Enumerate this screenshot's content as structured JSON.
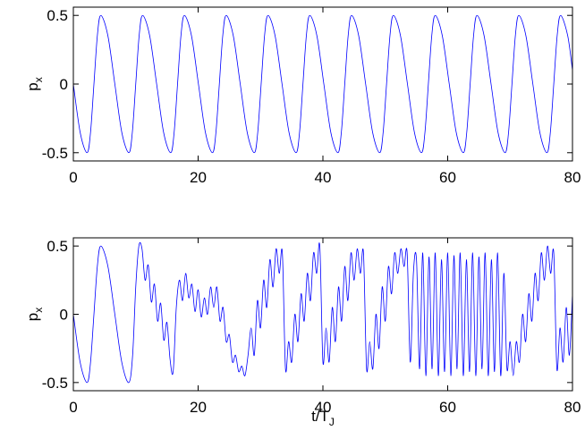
{
  "chart_data": [
    {
      "type": "line",
      "ylabel": [
        "p",
        "x"
      ],
      "x": [
        0,
        1.1,
        2.2,
        2.75,
        3.3,
        3.85,
        4.4,
        5.525,
        6.65,
        7.775,
        8.9,
        9.45,
        10,
        10.55,
        11.1,
        12.225,
        13.35,
        14.475,
        15.6,
        16.15,
        16.7,
        17.25,
        17.8,
        18.925,
        20.05,
        21.175,
        22.3,
        22.85,
        23.4,
        23.95,
        24.5,
        25.625,
        26.75,
        27.875,
        29,
        29.55,
        30.1,
        30.65,
        31.2,
        32.325,
        33.45,
        34.575,
        35.7,
        36.25,
        36.8,
        37.35,
        37.9,
        39.025,
        40.15,
        41.275,
        42.4,
        42.95,
        43.5,
        44.05,
        44.6,
        45.725,
        46.85,
        47.975,
        49.1,
        49.65,
        50.2,
        50.75,
        51.3,
        52.425,
        53.55,
        54.675,
        55.8,
        56.35,
        56.9,
        57.45,
        58,
        59.125,
        60.25,
        61.375,
        62.5,
        63.05,
        63.6,
        64.15,
        64.7,
        65.825,
        66.95,
        68.075,
        69.2,
        69.75,
        70.3,
        70.85,
        71.4,
        72.525,
        73.65,
        74.775,
        75.9,
        76.45,
        77,
        77.55,
        78.1,
        79.225,
        80
      ],
      "series": [
        {
          "color": "#0000ff",
          "values": [
            0,
            -0.354,
            -0.5,
            -0.354,
            0,
            0.354,
            0.5,
            0.354,
            0,
            -0.354,
            -0.5,
            -0.354,
            0,
            0.354,
            0.5,
            0.354,
            0,
            -0.354,
            -0.5,
            -0.354,
            0,
            0.354,
            0.5,
            0.354,
            0,
            -0.354,
            -0.5,
            -0.354,
            0,
            0.354,
            0.5,
            0.354,
            0,
            -0.354,
            -0.5,
            -0.354,
            0,
            0.354,
            0.5,
            0.354,
            0,
            -0.354,
            -0.5,
            -0.354,
            0,
            0.354,
            0.5,
            0.354,
            0,
            -0.354,
            -0.5,
            -0.354,
            0,
            0.354,
            0.5,
            0.354,
            0,
            -0.354,
            -0.5,
            -0.354,
            0,
            0.354,
            0.5,
            0.354,
            0,
            -0.354,
            -0.5,
            -0.354,
            0,
            0.354,
            0.5,
            0.354,
            0,
            -0.354,
            -0.5,
            -0.354,
            0,
            0.354,
            0.5,
            0.354,
            0,
            -0.354,
            -0.5,
            -0.354,
            0,
            0.354,
            0.5,
            0.354,
            0,
            -0.354,
            -0.5,
            -0.354,
            0,
            0.354,
            0.5,
            0.354,
            0.1
          ]
        }
      ],
      "xlim": [
        0,
        80
      ],
      "xticks": [
        0,
        20,
        40,
        60,
        80
      ],
      "ylim": [
        -0.56,
        0.56
      ],
      "yticks": [
        -0.5,
        0,
        0.5
      ]
    },
    {
      "type": "line",
      "ylabel": [
        "p",
        "x"
      ],
      "xlabel": [
        "t/T",
        "J"
      ],
      "x": [
        0,
        1.1,
        2.2,
        2.75,
        3.3,
        3.85,
        4.4,
        5.525,
        6.65,
        7.775,
        8.9,
        9.5,
        10,
        10.5,
        11,
        11.5,
        12,
        12.5,
        13,
        13.5,
        14,
        14.5,
        15,
        15.5,
        16,
        16.5,
        17,
        17.5,
        18,
        18.5,
        19,
        19.5,
        20,
        20.5,
        21,
        21.5,
        22,
        22.5,
        23,
        23.5,
        24,
        24.5,
        25,
        25.5,
        26,
        26.5,
        27,
        27.5,
        28,
        28.5,
        29,
        29.5,
        30,
        30.5,
        31,
        31.5,
        32,
        32.5,
        33,
        33.5,
        34,
        34.5,
        35,
        35.5,
        36,
        36.5,
        37,
        37.5,
        38,
        38.5,
        39,
        39.5,
        40,
        40.5,
        41,
        41.5,
        42,
        42.5,
        43,
        43.5,
        44,
        44.5,
        45,
        45.5,
        46,
        46.5,
        47,
        47.5,
        48,
        48.5,
        49,
        49.5,
        50,
        50.5,
        51,
        51.5,
        52,
        52.5,
        53,
        53.5,
        54,
        54.5,
        55,
        55.5,
        56,
        56.5,
        57,
        57.5,
        58,
        58.5,
        59,
        59.5,
        60,
        60.5,
        61,
        61.5,
        62,
        62.5,
        63,
        63.5,
        64,
        64.5,
        65,
        65.5,
        66,
        66.5,
        67,
        67.5,
        68,
        68.5,
        69,
        69.5,
        70,
        70.5,
        71,
        71.5,
        72,
        72.5,
        73,
        73.5,
        74,
        74.5,
        75,
        75.5,
        76,
        76.5,
        77,
        77.5,
        78,
        78.5,
        79,
        79.5,
        80
      ],
      "series": [
        {
          "color": "#0000ff",
          "values": [
            0,
            -0.354,
            -0.5,
            -0.354,
            0,
            0.354,
            0.5,
            0.354,
            0,
            -0.354,
            -0.5,
            -0.3,
            0.2,
            0.5,
            0.48,
            0.25,
            0.36,
            0.09,
            0.22,
            -0.05,
            0.08,
            -0.19,
            -0.06,
            -0.33,
            -0.42,
            0.05,
            0.25,
            0.1,
            0.3,
            0.12,
            0.22,
            0.02,
            0.18,
            -0.02,
            0.12,
            0,
            0.2,
            0.05,
            0.2,
            -0.05,
            0.05,
            -0.2,
            -0.15,
            -0.35,
            -0.3,
            -0.42,
            -0.38,
            -0.45,
            -0.3,
            -0.1,
            -0.3,
            0.1,
            -0.1,
            0.25,
            0.05,
            0.4,
            0.2,
            0.48,
            0.3,
            0.45,
            -0.4,
            -0.2,
            -0.35,
            0,
            -0.2,
            0.15,
            -0.05,
            0.3,
            0.1,
            0.45,
            0.3,
            0.5,
            -0.35,
            -0.1,
            -0.35,
            0.05,
            -0.2,
            0.2,
            -0.05,
            0.35,
            0.1,
            0.45,
            0.25,
            0.48,
            0.3,
            0.45,
            -0.4,
            -0.2,
            -0.4,
            0,
            -0.25,
            0.2,
            -0.05,
            0.35,
            0.15,
            0.45,
            0.3,
            0.48,
            0.35,
            0.45,
            -0.35,
            0.3,
            0.4,
            -0.4,
            0.45,
            -0.45,
            0.42,
            -0.4,
            0.45,
            -0.45,
            0.4,
            -0.42,
            0.45,
            -0.45,
            0.43,
            -0.4,
            0.45,
            -0.45,
            0.4,
            -0.42,
            0.45,
            -0.45,
            0.42,
            -0.4,
            0.45,
            -0.45,
            0.4,
            -0.42,
            0.45,
            -0.45,
            0.3,
            -0.4,
            -0.2,
            -0.45,
            -0.2,
            -0.35,
            0,
            -0.2,
            0.15,
            -0.05,
            0.3,
            0.1,
            0.45,
            0.25,
            0.5,
            0.3,
            0.45,
            -0.4,
            -0.1,
            -0.35,
            0.05,
            -0.3,
            0.15
          ]
        }
      ],
      "xlim": [
        0,
        80
      ],
      "xticks": [
        0,
        20,
        40,
        60,
        80
      ],
      "ylim": [
        -0.56,
        0.56
      ],
      "yticks": [
        -0.5,
        0,
        0.5
      ]
    }
  ]
}
